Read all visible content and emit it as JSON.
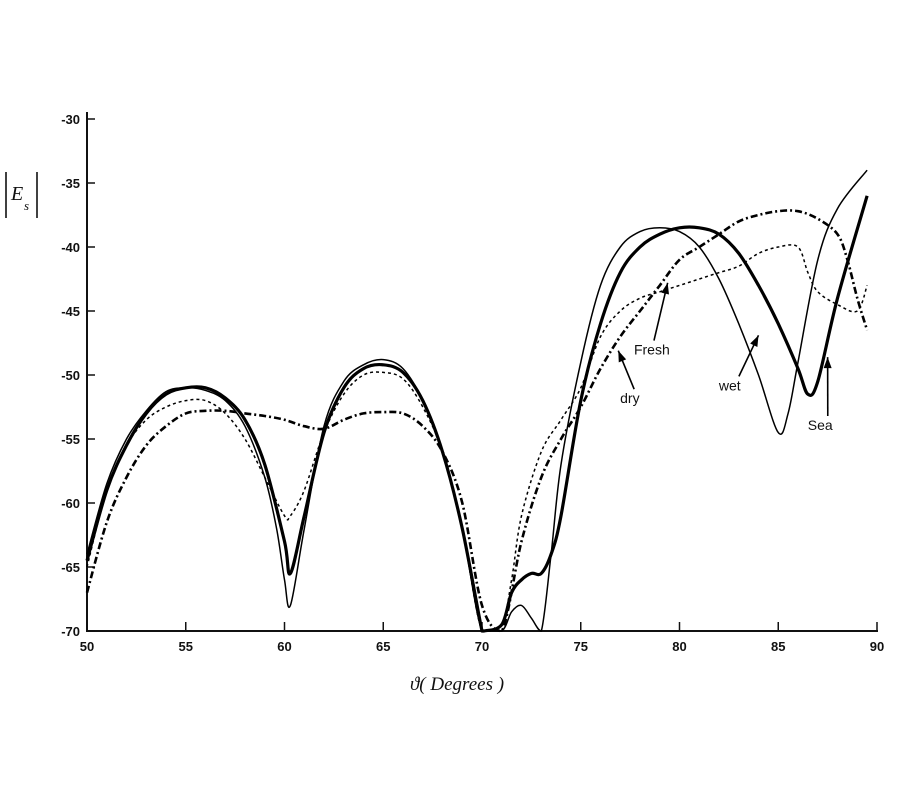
{
  "chart_data": {
    "type": "line",
    "title": "",
    "xlabel": "ϑ( Degrees )",
    "ylabel": "|E_s|",
    "xlim": [
      50,
      90
    ],
    "ylim": [
      -70,
      -30
    ],
    "xticks": [
      50,
      55,
      60,
      65,
      70,
      75,
      80,
      85,
      90
    ],
    "yticks": [
      -30,
      -35,
      -40,
      -45,
      -50,
      -55,
      -60,
      -65,
      -70
    ],
    "grid": false,
    "legend": "inline annotations with arrows",
    "series": [
      {
        "name": "Sea",
        "style": "thick-solid",
        "x": [
          50,
          51,
          52,
          53,
          54,
          55,
          56,
          57,
          58,
          59,
          60,
          60.3,
          61,
          62,
          63,
          64,
          65,
          66,
          67,
          68,
          69,
          70,
          70.1,
          71,
          71.5,
          72,
          72.5,
          73,
          73.5,
          74,
          75,
          76,
          77,
          78,
          79,
          80,
          81,
          82,
          83,
          84,
          85,
          86,
          86.5,
          87,
          88,
          89.5
        ],
        "y": [
          -64.5,
          -59,
          -55.5,
          -53,
          -51.5,
          -51,
          -51,
          -51.8,
          -53.5,
          -57,
          -63,
          -65.5,
          -61,
          -54.5,
          -51,
          -49.5,
          -49.2,
          -49.8,
          -52,
          -56,
          -62,
          -70,
          -70,
          -69.5,
          -67,
          -66,
          -65.5,
          -65.5,
          -64,
          -61,
          -52,
          -46,
          -42,
          -40,
          -39,
          -38.5,
          -38.5,
          -39,
          -40.5,
          -43,
          -46,
          -49.5,
          -51.5,
          -50.5,
          -44,
          -36
        ]
      },
      {
        "name": "Wet",
        "style": "thin-solid",
        "x": [
          50,
          51,
          52,
          53,
          54,
          55,
          56,
          57,
          58,
          59,
          59.6,
          60,
          60.3,
          61,
          62,
          63,
          64,
          65,
          66,
          67,
          68,
          69,
          70,
          71,
          71.5,
          72,
          72.5,
          73,
          73.5,
          74,
          75,
          76,
          77,
          78,
          79,
          80,
          81,
          82,
          83,
          84,
          85,
          85.5,
          86,
          87,
          88,
          89.5
        ],
        "y": [
          -64,
          -58.5,
          -55,
          -52.8,
          -51.3,
          -51,
          -51.2,
          -52,
          -54,
          -58,
          -62,
          -66,
          -68,
          -62,
          -54,
          -50.5,
          -49.2,
          -48.8,
          -49.5,
          -52,
          -56,
          -62,
          -70,
          -70,
          -68.5,
          -68,
          -69,
          -70,
          -64,
          -57,
          -49,
          -43,
          -40,
          -38.8,
          -38.5,
          -38.8,
          -40,
          -42.5,
          -46,
          -50,
          -54.5,
          -53,
          -49,
          -41,
          -37,
          -34
        ]
      },
      {
        "name": "Fresh",
        "style": "dotted",
        "x": [
          50,
          51,
          52,
          53,
          54,
          55,
          56,
          57,
          58,
          59,
          60,
          60.3,
          61,
          62,
          63,
          64,
          65,
          66,
          67,
          68,
          69,
          70,
          71,
          71.5,
          72,
          73,
          74,
          75,
          76,
          77,
          78,
          79,
          80,
          81,
          82,
          83,
          84,
          85,
          86,
          86.5,
          87,
          88,
          89,
          89.5
        ],
        "y": [
          -65,
          -59,
          -55.5,
          -53.5,
          -52.5,
          -52,
          -52,
          -53,
          -55,
          -58,
          -61,
          -61,
          -59,
          -54.5,
          -51.5,
          -50,
          -49.8,
          -50.3,
          -52.5,
          -56,
          -62,
          -70,
          -69.5,
          -66,
          -61,
          -56,
          -53.5,
          -51,
          -47,
          -45,
          -44,
          -43.5,
          -43,
          -42.5,
          -42,
          -41.5,
          -40.5,
          -40,
          -40,
          -42,
          -43.5,
          -44.5,
          -45,
          -43
        ]
      },
      {
        "name": "dry",
        "style": "dash-dot",
        "x": [
          50,
          51,
          52,
          53,
          54,
          55,
          56,
          57,
          58,
          59,
          60,
          61,
          62,
          63,
          64,
          65,
          66,
          67,
          68,
          69,
          70,
          71,
          72,
          73,
          74,
          75,
          76,
          77,
          78,
          79,
          80,
          81,
          82,
          83,
          84,
          85,
          86,
          87,
          88,
          88.5,
          89,
          89.5
        ],
        "y": [
          -67,
          -61.5,
          -58,
          -55.5,
          -54,
          -53,
          -52.8,
          -52.8,
          -53,
          -53.2,
          -53.5,
          -54,
          -54.2,
          -53.5,
          -53,
          -52.9,
          -53,
          -54,
          -56,
          -60,
          -68,
          -70,
          -63,
          -58,
          -55,
          -52.5,
          -49.5,
          -47,
          -45,
          -43,
          -41,
          -40,
          -39,
          -38,
          -37.5,
          -37.2,
          -37.2,
          -37.8,
          -39,
          -41,
          -44,
          -46.5
        ]
      }
    ],
    "annotations": [
      {
        "text": "Fresh",
        "label_x": 78.1,
        "label_y": -48.4,
        "arrow_to_x": 79.4,
        "arrow_to_y": -42.8
      },
      {
        "text": "dry",
        "label_x": 77.4,
        "label_y": -52.2,
        "arrow_to_x": 76.9,
        "arrow_to_y": -48.1
      },
      {
        "text": "wet",
        "label_x": 82.4,
        "label_y": -51.2,
        "arrow_to_x": 84,
        "arrow_to_y": -46.9
      },
      {
        "text": "Sea",
        "label_x": 86.9,
        "label_y": -54.3,
        "arrow_to_x": 87.5,
        "arrow_to_y": -48.6
      }
    ]
  }
}
